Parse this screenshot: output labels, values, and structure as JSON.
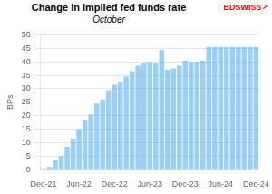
{
  "chart_data": {
    "type": "bar",
    "title": "Change in implied fed funds rate",
    "subtitle": "October",
    "ylabel": "BPs",
    "categories": [
      "Dec-21",
      null,
      null,
      null,
      null,
      null,
      "Jun-22",
      null,
      null,
      null,
      null,
      null,
      "Dec-22",
      null,
      null,
      null,
      null,
      null,
      "Jun-23",
      null,
      null,
      null,
      null,
      null,
      "Dec-23",
      null,
      null,
      null,
      null,
      null,
      "Jun-24",
      null,
      null,
      null,
      null,
      null,
      "Dec-24"
    ],
    "values": [
      0.5,
      1.0,
      3.5,
      5.0,
      8.5,
      11.5,
      15.0,
      18.5,
      20.5,
      24.5,
      26.0,
      29.5,
      31.5,
      32.5,
      34.5,
      36.5,
      38.5,
      39.5,
      40.0,
      39.5,
      44.5,
      37.0,
      37.5,
      38.5,
      40.5,
      40.0,
      40.0,
      40.5,
      45.5,
      45.5,
      45.5,
      45.5,
      45.5,
      45.5,
      45.5,
      45.5,
      45.5
    ],
    "ylim": [
      0,
      50
    ],
    "yticks": [
      0,
      5,
      10,
      15,
      20,
      25,
      30,
      35,
      40,
      45,
      50
    ],
    "grid": true,
    "annotations": [
      {
        "text": "BD",
        "color": "#e8000a"
      },
      {
        "text": "SWISS",
        "color": "#e8000a"
      },
      {
        "text": "↗",
        "color": "#e8000a"
      }
    ]
  }
}
